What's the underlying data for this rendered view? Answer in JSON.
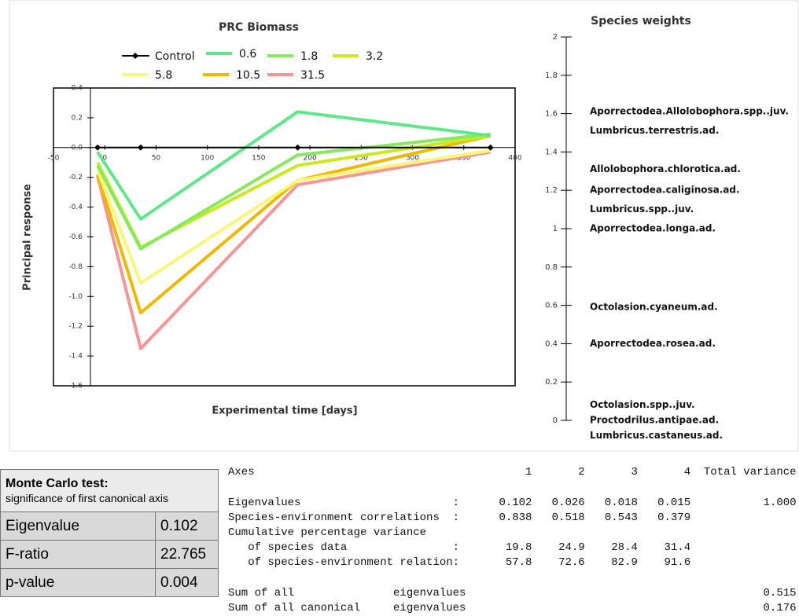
{
  "chart_data": [
    {
      "type": "line",
      "title": "PRC Biomass",
      "x_label": "Experimental time [days]",
      "y_label": "Principal response",
      "x": [
        -7,
        35,
        188,
        376
      ],
      "series": [
        {
          "name": "Control",
          "color": "#000000",
          "values": [
            0,
            0,
            0,
            0
          ]
        },
        {
          "name": "0.6",
          "color": "#5ee88a",
          "values": [
            -0.03,
            -0.48,
            0.24,
            0.08
          ]
        },
        {
          "name": "1.8",
          "color": "#88e860",
          "values": [
            -0.12,
            -0.68,
            -0.05,
            0.09
          ]
        },
        {
          "name": "3.2",
          "color": "#c8ec1a",
          "values": [
            -0.1,
            -0.67,
            -0.12,
            0.08
          ]
        },
        {
          "name": "5.8",
          "color": "#f8f878",
          "values": [
            -0.15,
            -0.91,
            -0.22,
            -0.02
          ]
        },
        {
          "name": "10.5",
          "color": "#f2b800",
          "values": [
            -0.18,
            -1.11,
            -0.22,
            0.08
          ]
        },
        {
          "name": "31.5",
          "color": "#f59595",
          "values": [
            -0.19,
            -1.35,
            -0.25,
            -0.03
          ]
        }
      ],
      "xlim": [
        -50,
        400
      ],
      "ylim": [
        -1.6,
        0.4
      ],
      "xticks": [
        -50,
        0,
        50,
        100,
        150,
        200,
        250,
        300,
        350,
        400
      ],
      "yticks": [
        -1.6,
        -1.4,
        -1.2,
        {
          "value": -1,
          "label": "-1.0"
        },
        -0.8,
        -0.6,
        -0.4,
        -0.2,
        {
          "value": 0,
          "label": "0.0"
        },
        0.2,
        0.4
      ]
    },
    {
      "type": "labels",
      "title": "Species weights",
      "categories": [
        "Aporrectodea.Allolobophora.spp..juv.",
        "Lumbricus.terrestris.ad.",
        "Allolobophora.chlorotica.ad.",
        "Aporrectodea.caliginosa.ad.",
        "Lumbricus.spp..juv.",
        "Aporrectodea.longa.ad.",
        "Octolasion.cyaneum.ad.",
        "Aporrectodea.rosea.ad.",
        "Octolasion.spp..juv.",
        "Proctodrilus.antipae.ad.",
        "Lumbricus.castaneus.ad."
      ],
      "values": [
        1.61,
        1.51,
        1.31,
        1.2,
        1.1,
        1.0,
        0.59,
        0.4,
        0.08,
        0.0,
        -0.08
      ],
      "ylim": [
        0,
        2
      ],
      "yticks": [
        0,
        0.2,
        0.4,
        0.6,
        0.8,
        1,
        1.2,
        1.4,
        1.6,
        1.8,
        2
      ]
    }
  ],
  "monte_carlo": {
    "title": "Monte Carlo test:",
    "subtitle": "significance of first canonical axis",
    "rows": [
      [
        "Eigenvalue",
        "0.102"
      ],
      [
        "F-ratio",
        "22.765"
      ],
      [
        "p-value",
        "0.004"
      ]
    ]
  },
  "output": {
    "lines": [
      "Axes                                         1       2       3       4  Total variance",
      "Eigenvalues                       :      0.102   0.026   0.018   0.015           1.000",
      "Species-environment correlations  :      0.838   0.518   0.543   0.379",
      "Cumulative percentage variance",
      "   of species data                :       19.8    24.9    28.4    31.4",
      "   of species-environment relation:       57.8    72.6    82.9    91.6",
      "Sum of all               eigenvalues                                             0.515",
      "Sum of all canonical     eigenvalues                                             0.176"
    ]
  }
}
